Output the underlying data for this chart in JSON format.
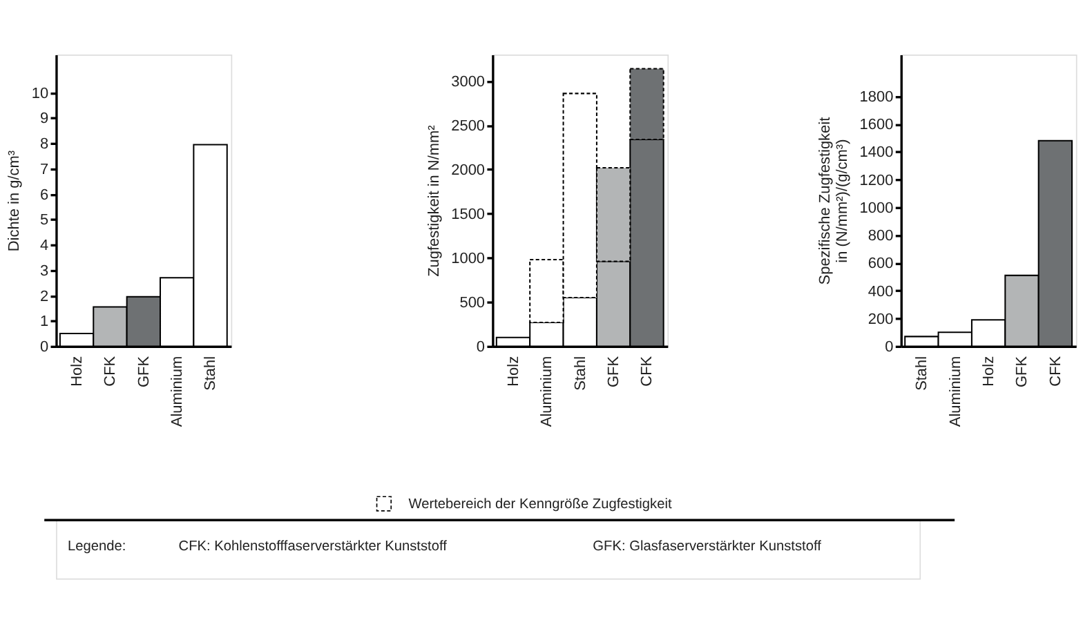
{
  "chart_data": [
    {
      "type": "bar",
      "ylabel": "Dichte in g/cm³",
      "categories": [
        "Holz",
        "CFK",
        "GFK",
        "Aluminium",
        "Stahl"
      ],
      "series": [
        {
          "colors": [
            "#ffffff",
            "#b3b5b6",
            "#6e7173",
            "#ffffff",
            "#ffffff"
          ],
          "values": [
            0.5,
            1.55,
            1.95,
            2.7,
            7.95
          ]
        }
      ],
      "ylim": [
        0,
        11.5
      ],
      "yticks": [
        0,
        1,
        2,
        3,
        4,
        5,
        6,
        7,
        8,
        9,
        10
      ],
      "grid": false
    },
    {
      "type": "bar",
      "stacked": true,
      "legend": "bottom",
      "ylabel": "Zugfestigkeit in N/mm²",
      "categories": [
        "Holz",
        "Aluminium",
        "Stahl",
        "GFK",
        "CFK"
      ],
      "series": [
        {
          "colors": [
            "#ffffff",
            "#ffffff",
            "#ffffff",
            "#b3b5b6",
            "#6e7173"
          ],
          "values": [
            100,
            270,
            550,
            960,
            2340
          ]
        },
        {
          "name": "Wertebereich der Kenngröße Zugfestigkeit",
          "line_style": "dashed",
          "colors": [
            "#ffffff",
            "#ffffff",
            "#ffffff",
            "#b3b5b6",
            "#6e7173"
          ],
          "values": [
            null,
            710,
            2310,
            1060,
            800
          ]
        }
      ],
      "ylim": [
        0,
        3300
      ],
      "yticks": [
        0,
        500,
        1000,
        1500,
        2000,
        2500,
        3000
      ],
      "grid": false
    },
    {
      "type": "bar",
      "ylabel": "Spezifische Zugfestigkeit\nin (N/mm²)/(g/cm³)",
      "categories": [
        "Stahl",
        "Aluminium",
        "Holz",
        "GFK",
        "CFK"
      ],
      "series": [
        {
          "colors": [
            "#ffffff",
            "#ffffff",
            "#ffffff",
            "#b3b5b6",
            "#6e7173"
          ],
          "values": [
            70,
            100,
            190,
            510,
            1480
          ]
        }
      ],
      "ylim": [
        0,
        2100
      ],
      "yticks": [
        0,
        200,
        400,
        600,
        800,
        1000,
        1200,
        1400,
        1600,
        1800
      ],
      "grid": false
    },
    {
      "type": "other",
      "annotations": [
        "Legende:",
        "CFK: Kohlenstofffaserverstärkter Kunststoff",
        "GFK: Glasfaserverstärkter Kunststoff"
      ]
    }
  ]
}
